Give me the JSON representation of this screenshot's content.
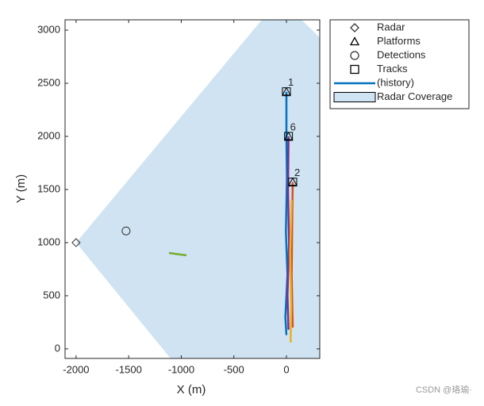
{
  "chart_data": {
    "type": "theater",
    "xlabel": "X (m)",
    "ylabel": "Y (m)",
    "xlim": [
      -2105,
      317
    ],
    "ylim": [
      -90,
      3097
    ],
    "xticks": [
      -2000,
      -1500,
      -1000,
      -500,
      0
    ],
    "yticks": [
      0,
      500,
      1000,
      1500,
      2000,
      2500,
      3000
    ],
    "coverage": {
      "name": "Radar Coverage",
      "color": "#cfe3f2",
      "x": [
        -2000,
        -234,
        143,
        317,
        317,
        -1102
      ],
      "y": [
        1000,
        3097,
        3097,
        2930,
        -90,
        -90
      ]
    },
    "radar": {
      "name": "Radar",
      "x": [
        -2000
      ],
      "y": [
        1000
      ]
    },
    "platforms": {
      "name": "Platforms",
      "x": [
        0,
        20,
        60
      ],
      "y": [
        2420,
        2000,
        1570
      ]
    },
    "detections": {
      "name": "Detections",
      "x": [
        -1525
      ],
      "y": [
        1110
      ]
    },
    "tracks": {
      "name": "Tracks",
      "x": [
        0,
        20,
        60
      ],
      "y": [
        2420,
        2000,
        1570
      ],
      "labels": [
        "1",
        "6",
        "2"
      ]
    },
    "history": {
      "name": "(history)",
      "color": "#0072bd"
    },
    "history_lines": [
      {
        "color": "#0072bd",
        "x": [
          0,
          -10,
          10,
          -5,
          5,
          0,
          0
        ],
        "y": [
          130,
          300,
          700,
          1100,
          1600,
          2000,
          2420
        ]
      },
      {
        "color": "#7e2f8e",
        "x": [
          20,
          10,
          25,
          15,
          20
        ],
        "y": [
          180,
          500,
          1000,
          1500,
          2000
        ]
      },
      {
        "color": "#d95319",
        "x": [
          60,
          50,
          55,
          60
        ],
        "y": [
          200,
          700,
          1200,
          1570
        ]
      },
      {
        "color": "#edb120",
        "x": [
          40,
          45,
          35,
          50
        ],
        "y": [
          60,
          400,
          900,
          1400
        ]
      },
      {
        "color": "#77ac30",
        "x": [
          -1117,
          -951
        ],
        "y": [
          903,
          880
        ]
      }
    ],
    "footer": "CSDN @珞瑜·"
  }
}
